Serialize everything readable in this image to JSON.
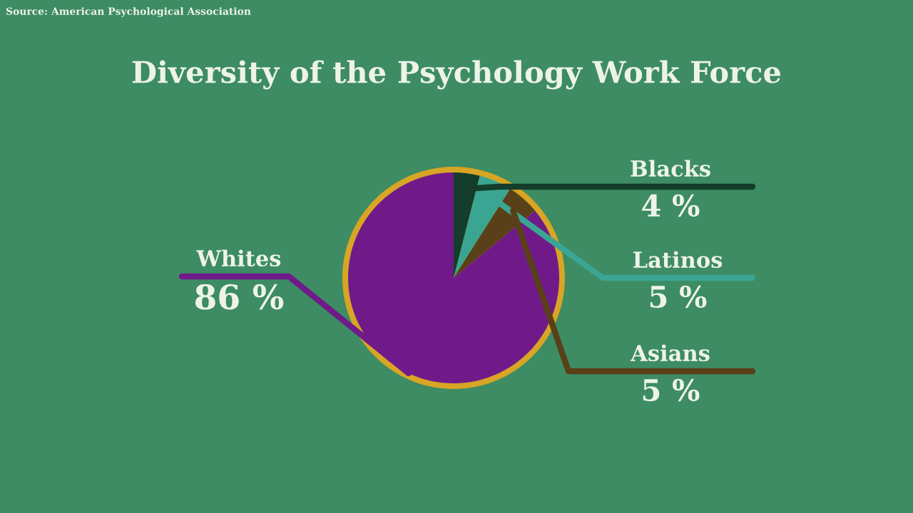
{
  "chart_data": {
    "type": "pie",
    "title": "Diversity of the Psychology Work Force",
    "annotations": [
      "Source: American Psychological Association"
    ],
    "categories": [
      "Blacks",
      "Latinos",
      "Asians",
      "Whites"
    ],
    "values": [
      4,
      5,
      5,
      86
    ],
    "value_labels": [
      "4 %",
      "5 %",
      "5 %",
      "86 %"
    ],
    "colors": [
      "#143d2b",
      "#3aa592",
      "#5a4018",
      "#701a8a"
    ],
    "legend": false
  }
}
